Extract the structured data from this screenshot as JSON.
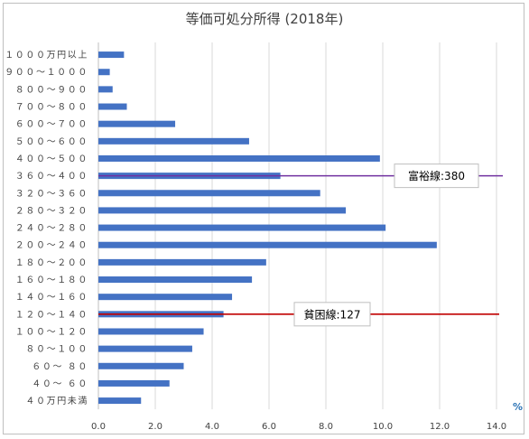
{
  "chart_data": {
    "type": "bar",
    "orientation": "horizontal",
    "title": "等価可処分所得 (2018年)",
    "unit_label": "%",
    "categories": [
      "１０００万円以上",
      "９００～１０００",
      "８００～９００",
      "７００～８００",
      "６００～７００",
      "５００～６００",
      "４００～５００",
      "３６０～４００",
      "３２０～３６０",
      "２８０～３２０",
      "２４０～２８０",
      "２００～２４０",
      "１８０～２００",
      "１６０～１８０",
      "１４０～１６０",
      "１２０～１４０",
      "１００～１２０",
      "８０～１００",
      "６０～ ８０",
      "４０～ ６０",
      "４０万円未満"
    ],
    "values": [
      0.9,
      0.4,
      0.5,
      1.0,
      2.7,
      5.3,
      9.9,
      6.4,
      7.8,
      8.7,
      10.1,
      11.9,
      5.9,
      5.4,
      4.7,
      4.4,
      3.7,
      3.3,
      3.0,
      2.5,
      1.5
    ],
    "xlim": [
      0,
      14
    ],
    "xticks": [
      "0.0",
      "2.0",
      "4.0",
      "6.0",
      "8.0",
      "10.0",
      "12.0",
      "14.0"
    ],
    "grid": true,
    "bar_color": "#4472c4",
    "annotations": [
      {
        "label": "富裕線:380",
        "category_index": 7,
        "color": "#7030a0"
      },
      {
        "label": "貧困線:127",
        "category_index": 15,
        "color": "#c00000"
      }
    ]
  }
}
